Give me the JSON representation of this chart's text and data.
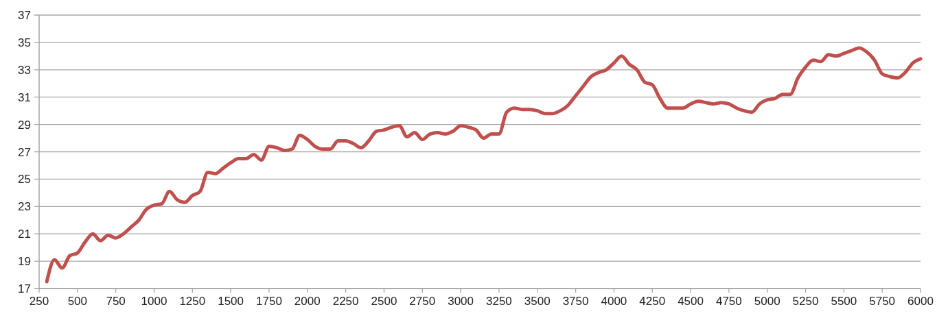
{
  "chart_data": {
    "type": "line",
    "color": "#c0504d",
    "grid": "y",
    "line_style": "solid",
    "marker": "none",
    "xlim": [
      250,
      6000
    ],
    "xticks": [
      250,
      500,
      750,
      1000,
      1250,
      1500,
      1750,
      2000,
      2250,
      2500,
      2750,
      3000,
      3250,
      3500,
      3750,
      4000,
      4250,
      4500,
      4750,
      5000,
      5250,
      5500,
      5750,
      6000
    ],
    "ylim": [
      17,
      37
    ],
    "yticks": [
      17,
      19,
      21,
      23,
      25,
      27,
      29,
      31,
      33,
      35,
      37
    ],
    "x": [
      300,
      350,
      400,
      450,
      500,
      550,
      600,
      650,
      700,
      750,
      800,
      850,
      900,
      950,
      1000,
      1050,
      1100,
      1150,
      1200,
      1250,
      1300,
      1350,
      1400,
      1450,
      1500,
      1550,
      1600,
      1650,
      1700,
      1750,
      1800,
      1850,
      1900,
      1950,
      2000,
      2050,
      2100,
      2150,
      2200,
      2250,
      2300,
      2350,
      2400,
      2450,
      2500,
      2550,
      2600,
      2650,
      2700,
      2750,
      2800,
      2850,
      2900,
      2950,
      3000,
      3050,
      3100,
      3150,
      3200,
      3250,
      3300,
      3350,
      3400,
      3450,
      3500,
      3550,
      3600,
      3650,
      3700,
      3750,
      3800,
      3850,
      3900,
      3950,
      4000,
      4050,
      4100,
      4150,
      4200,
      4250,
      4300,
      4350,
      4400,
      4450,
      4500,
      4550,
      4600,
      4650,
      4700,
      4750,
      4800,
      4850,
      4900,
      4950,
      5000,
      5050,
      5100,
      5150,
      5200,
      5250,
      5300,
      5350,
      5400,
      5450,
      5500,
      5550,
      5600,
      5650,
      5700,
      5750,
      5800,
      5850,
      5900,
      5950,
      6000
    ],
    "values": [
      17.5,
      19.1,
      18.5,
      19.4,
      19.6,
      20.4,
      21.0,
      20.5,
      20.9,
      20.7,
      21.0,
      21.5,
      22.0,
      22.8,
      23.1,
      23.2,
      24.1,
      23.5,
      23.3,
      23.8,
      24.1,
      25.5,
      25.4,
      25.8,
      26.2,
      26.5,
      26.5,
      26.8,
      26.4,
      27.4,
      27.3,
      27.1,
      27.2,
      28.2,
      27.9,
      27.4,
      27.2,
      27.2,
      27.8,
      27.8,
      27.6,
      27.3,
      27.8,
      28.5,
      28.6,
      28.8,
      28.9,
      28.1,
      28.4,
      27.9,
      28.3,
      28.4,
      28.3,
      28.5,
      28.9,
      28.8,
      28.6,
      28.0,
      28.3,
      28.3,
      29.9,
      30.2,
      30.1,
      30.1,
      30.0,
      29.8,
      29.8,
      30.0,
      30.4,
      31.1,
      31.8,
      32.5,
      32.8,
      33.0,
      33.5,
      34.0,
      33.4,
      33.0,
      32.1,
      31.9,
      30.9,
      30.2,
      30.2,
      30.2,
      30.5,
      30.7,
      30.6,
      30.5,
      30.6,
      30.5,
      30.2,
      30.0,
      29.9,
      30.5,
      30.8,
      30.9,
      31.2,
      31.2,
      32.4,
      33.2,
      33.7,
      33.6,
      34.1,
      34.0,
      34.2,
      34.4,
      34.6,
      34.3,
      33.7,
      32.7,
      32.5,
      32.4,
      32.8,
      33.5,
      33.8
    ]
  }
}
